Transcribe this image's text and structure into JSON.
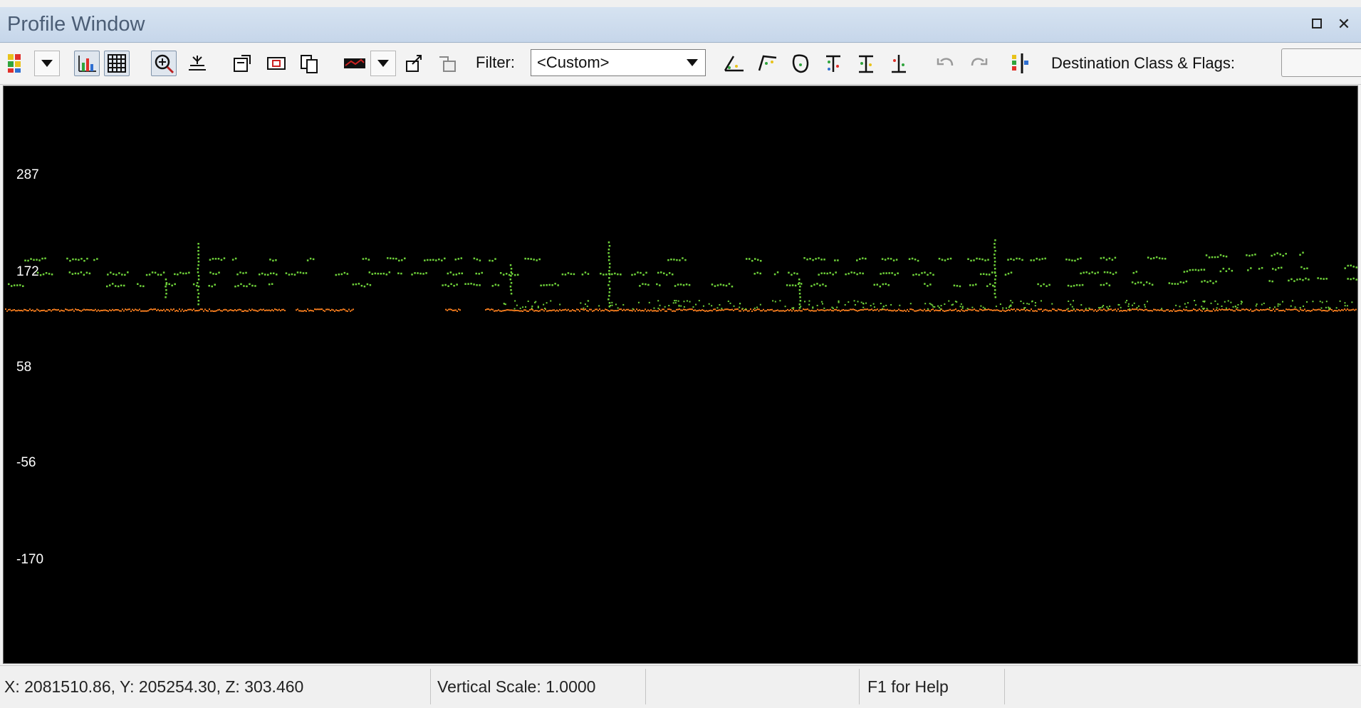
{
  "window": {
    "title": "Profile Window"
  },
  "toolbar": {
    "filter_label": "Filter:",
    "filter_value": "<Custom>",
    "dest_label": "Destination Class & Flags:"
  },
  "profile": {
    "y_ticks": [
      "287",
      "172",
      "58",
      "-56",
      "-170"
    ]
  },
  "status": {
    "coords": "X: 2081510.86, Y: 205254.30, Z: 303.460",
    "vertical_scale": "Vertical Scale: 1.0000",
    "help": "F1 for Help"
  },
  "colors": {
    "ground": "#f07a1d",
    "vegetation": "#6fd23a",
    "background": "#000000"
  }
}
